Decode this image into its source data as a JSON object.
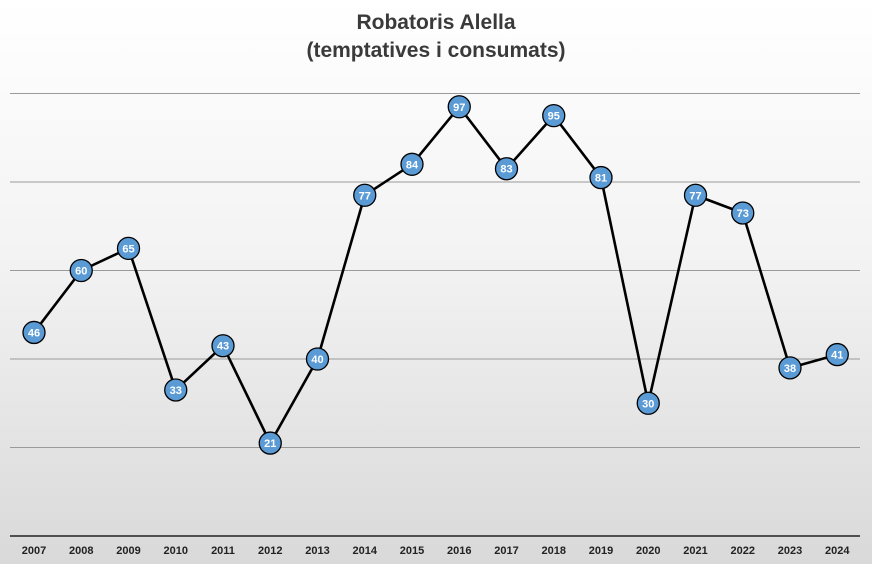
{
  "chart_data": {
    "type": "line",
    "title": [
      "Robatoris Alella",
      "(temptatives i consumats)"
    ],
    "categories": [
      "2007",
      "2008",
      "2009",
      "2010",
      "2011",
      "2012",
      "2013",
      "2014",
      "2015",
      "2016",
      "2017",
      "2018",
      "2019",
      "2020",
      "2021",
      "2022",
      "2023",
      "2024"
    ],
    "values": [
      46,
      60,
      65,
      33,
      43,
      21,
      40,
      77,
      84,
      97,
      83,
      95,
      81,
      30,
      77,
      73,
      38,
      41
    ],
    "ylim": [
      0,
      120
    ],
    "grid": true,
    "data_labels": true,
    "colors": {
      "line": "#000000",
      "marker": "#5b9bd5",
      "marker_text": "#ffffff"
    }
  }
}
